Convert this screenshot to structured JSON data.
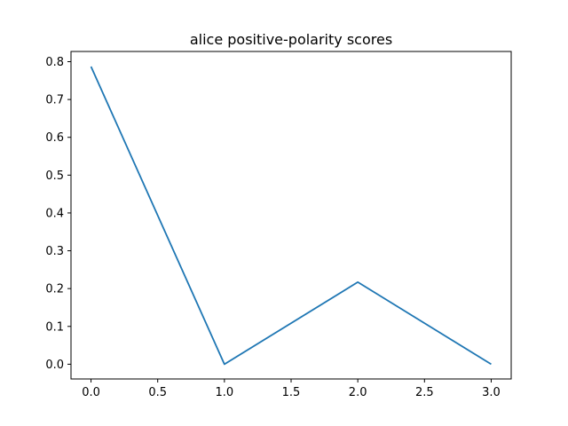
{
  "chart_data": {
    "type": "line",
    "title": "alice positive-polarity scores",
    "xlabel": "",
    "ylabel": "",
    "x": [
      0,
      1,
      2,
      3
    ],
    "series": [
      {
        "values": [
          0.787,
          0.0,
          0.217,
          0.0
        ],
        "color": "#1f77b4"
      }
    ],
    "xlim": [
      -0.15,
      3.15
    ],
    "ylim": [
      -0.039,
      0.827
    ],
    "x_ticks": [
      0.0,
      0.5,
      1.0,
      1.5,
      2.0,
      2.5,
      3.0
    ],
    "x_tick_labels": [
      "0.0",
      "0.5",
      "1.0",
      "1.5",
      "2.0",
      "2.5",
      "3.0"
    ],
    "y_ticks": [
      0.0,
      0.1,
      0.2,
      0.3,
      0.4,
      0.5,
      0.6,
      0.7,
      0.8
    ],
    "y_tick_labels": [
      "0.0",
      "0.1",
      "0.2",
      "0.3",
      "0.4",
      "0.5",
      "0.6",
      "0.7",
      "0.8"
    ],
    "grid": false,
    "legend": "none"
  }
}
